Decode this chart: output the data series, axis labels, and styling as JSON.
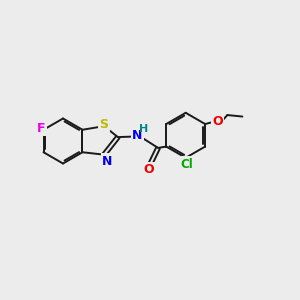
{
  "background_color": "#ececec",
  "bond_color": "#1a1a1a",
  "bond_width": 1.4,
  "atom_colors": {
    "F": "#ee00ee",
    "S": "#bbbb00",
    "N": "#0000ee",
    "H": "#008888",
    "O": "#ee0000",
    "Cl": "#00aa00",
    "C": "#1a1a1a"
  },
  "font_size": 8.5,
  "fig_width": 3.0,
  "fig_height": 3.0,
  "dpi": 100
}
